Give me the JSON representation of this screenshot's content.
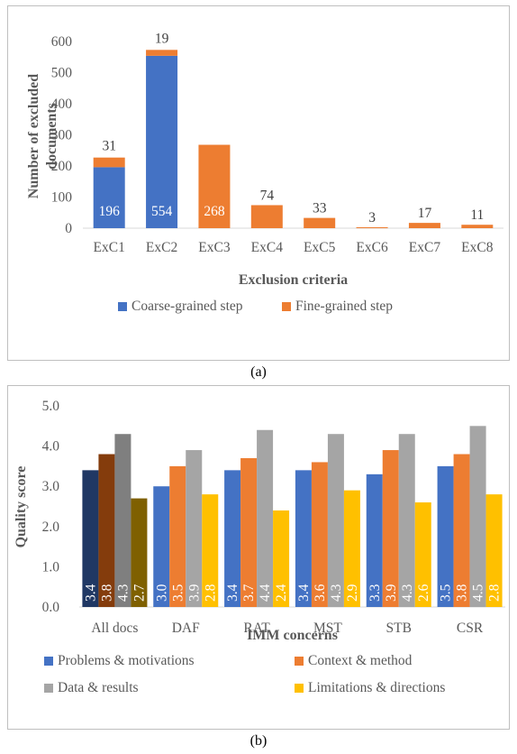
{
  "chart_data": [
    {
      "type": "bar",
      "stacked": true,
      "categories": [
        "ExC1",
        "ExC2",
        "ExC3",
        "ExC4",
        "ExC5",
        "ExC6",
        "ExC7",
        "ExC8"
      ],
      "series": [
        {
          "name": "Coarse-grained step",
          "color": "#4472c4",
          "values": [
            196,
            554,
            0,
            0,
            0,
            0,
            0,
            0
          ]
        },
        {
          "name": "Fine-grained step",
          "color": "#ed7d31",
          "values": [
            31,
            19,
            268,
            74,
            33,
            3,
            17,
            11
          ]
        }
      ],
      "data_labels": {
        "coarse": [
          "196",
          "554",
          "",
          "",
          "",
          "",
          "",
          ""
        ],
        "fine": [
          "31",
          "19",
          "268",
          "74",
          "33",
          "3",
          "17",
          "11"
        ]
      },
      "xlabel": "Exclusion criteria",
      "ylabel": "Number of excluded documents",
      "ylabel_lines": [
        "Number of excluded",
        "documents"
      ],
      "ylim": [
        0,
        600
      ],
      "yticks": [
        "0",
        "100",
        "200",
        "300",
        "400",
        "500",
        "600"
      ],
      "grid": false,
      "legend": "bottom",
      "caption": "(a)"
    },
    {
      "type": "bar",
      "categories": [
        "All docs",
        "DAF",
        "RAT",
        "MST",
        "STB",
        "CSR"
      ],
      "series": [
        {
          "name": "Problems & motivations",
          "color": "#4472c4",
          "values": [
            3.4,
            3.0,
            3.4,
            3.4,
            3.3,
            3.5
          ]
        },
        {
          "name": "Context & method",
          "color": "#ed7d31",
          "values": [
            3.8,
            3.5,
            3.7,
            3.6,
            3.9,
            3.8
          ]
        },
        {
          "name": "Data & results",
          "color": "#a5a5a5",
          "values": [
            4.3,
            3.9,
            4.4,
            4.3,
            4.3,
            4.5
          ]
        },
        {
          "name": "Limitations & directions",
          "color": "#ffc000",
          "values": [
            2.7,
            2.8,
            2.4,
            2.9,
            2.6,
            2.8
          ]
        }
      ],
      "first_group_colors": [
        "#203864",
        "#843c0c",
        "#7f7f7f",
        "#7f6000"
      ],
      "data_labels": [
        [
          "3.4",
          "3.0",
          "3.4",
          "3.4",
          "3.3",
          "3.5"
        ],
        [
          "3.8",
          "3.5",
          "3.7",
          "3.6",
          "3.9",
          "3.8"
        ],
        [
          "4.3",
          "3.9",
          "4.4",
          "4.3",
          "4.3",
          "4.5"
        ],
        [
          "2.7",
          "2.8",
          "2.4",
          "2.9",
          "2.6",
          "2.8"
        ]
      ],
      "xlabel": "IMM concerns",
      "ylabel": "Quality score",
      "ylim": [
        0,
        5
      ],
      "yticks": [
        "0.0",
        "1.0",
        "2.0",
        "3.0",
        "4.0",
        "5.0"
      ],
      "grid": false,
      "legend": "bottom",
      "caption": "(b)"
    }
  ]
}
